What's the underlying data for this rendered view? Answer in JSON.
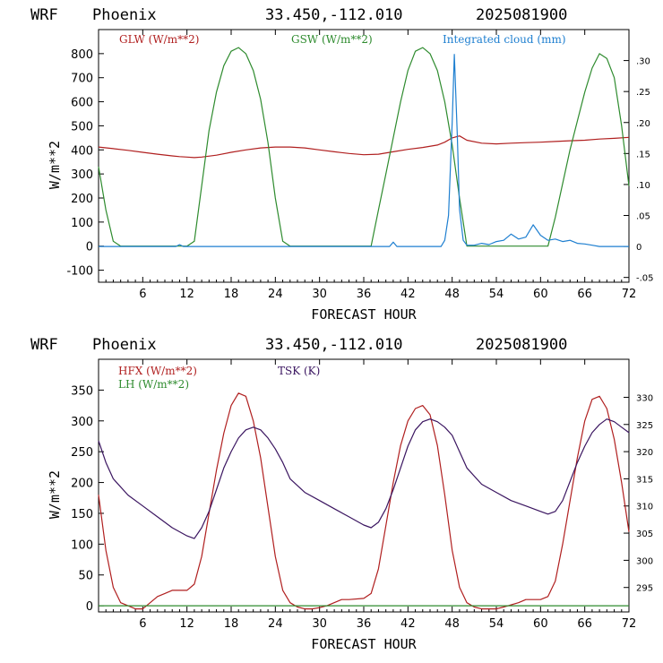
{
  "chart_data": [
    {
      "type": "line",
      "header": {
        "model": "WRF",
        "location": "Phoenix",
        "coords": "33.450,-112.010",
        "init": "2025081900"
      },
      "xlabel": "FORECAST HOUR",
      "ylabel": "W/m**2",
      "xlim": [
        0,
        72
      ],
      "xticks": [
        6,
        12,
        18,
        24,
        30,
        36,
        42,
        48,
        54,
        60,
        66,
        72
      ],
      "ylim": [
        -150,
        900
      ],
      "yticks": [
        -100,
        0,
        100,
        200,
        300,
        400,
        500,
        600,
        700,
        800
      ],
      "y2lim": [
        -0.0577,
        0.35
      ],
      "y2ticks": [
        -0.05,
        0,
        0.05,
        0.1,
        0.15,
        0.2,
        0.25,
        0.3
      ],
      "y2ticklabels": [
        "-.05",
        "0",
        ".05",
        ".10",
        ".15",
        ".20",
        ".25",
        ".30"
      ],
      "series": [
        {
          "name": "GLW (W/m**2)",
          "color": "#b01f1f",
          "axis": "left",
          "x": [
            0,
            2,
            4,
            6,
            8,
            10,
            11,
            12,
            13,
            14,
            16,
            18,
            20,
            22,
            24,
            26,
            28,
            30,
            32,
            34,
            36,
            38,
            40,
            42,
            44,
            46,
            47,
            48,
            49,
            50,
            52,
            54,
            56,
            58,
            60,
            62,
            64,
            66,
            68,
            70,
            72
          ],
          "y": [
            412,
            405,
            398,
            390,
            382,
            375,
            372,
            370,
            368,
            370,
            378,
            390,
            400,
            408,
            412,
            412,
            408,
            400,
            392,
            385,
            380,
            382,
            392,
            402,
            410,
            420,
            432,
            450,
            458,
            440,
            428,
            425,
            428,
            430,
            432,
            435,
            438,
            440,
            445,
            448,
            452
          ]
        },
        {
          "name": "GSW (W/m**2)",
          "color": "#2e8b2e",
          "axis": "left",
          "x": [
            0,
            1,
            2,
            3,
            4,
            12,
            13,
            14,
            15,
            16,
            17,
            18,
            19,
            20,
            21,
            22,
            23,
            24,
            25,
            26,
            37,
            38,
            39,
            40,
            41,
            42,
            43,
            44,
            45,
            46,
            47,
            48,
            49,
            50,
            61,
            62,
            63,
            64,
            65,
            66,
            67,
            68,
            69,
            70,
            71,
            72
          ],
          "y": [
            330,
            150,
            20,
            0,
            0,
            0,
            20,
            250,
            480,
            640,
            750,
            810,
            825,
            800,
            730,
            610,
            430,
            200,
            20,
            0,
            0,
            150,
            300,
            450,
            600,
            730,
            810,
            825,
            800,
            730,
            600,
            420,
            200,
            0,
            0,
            120,
            260,
            400,
            520,
            640,
            740,
            800,
            780,
            700,
            500,
            250
          ]
        },
        {
          "name": "Integrated cloud (mm)",
          "color": "#1e7fd0",
          "axis": "right",
          "x": [
            0,
            10.5,
            11,
            11.5,
            39.5,
            40,
            40.5,
            46.5,
            47,
            47.5,
            48,
            48.3,
            48.7,
            49,
            49.5,
            50,
            51,
            52,
            53,
            54,
            55,
            56,
            57,
            58,
            59,
            60,
            61,
            62,
            63,
            64,
            65,
            66,
            67,
            68,
            72
          ],
          "y": [
            0,
            0,
            0.003,
            0,
            0,
            0.007,
            0,
            0,
            0.01,
            0.05,
            0.2,
            0.31,
            0.18,
            0.06,
            0.01,
            0.002,
            0.002,
            0.005,
            0.003,
            0.008,
            0.01,
            0.02,
            0.012,
            0.015,
            0.035,
            0.018,
            0.01,
            0.012,
            0.008,
            0.01,
            0.005,
            0.004,
            0.002,
            0,
            0
          ]
        }
      ]
    },
    {
      "type": "line",
      "header": {
        "model": "WRF",
        "location": "Phoenix",
        "coords": "33.450,-112.010",
        "init": "2025081900"
      },
      "xlabel": "FORECAST HOUR",
      "ylabel": "W/m**2",
      "xlim": [
        0,
        72
      ],
      "xticks": [
        6,
        12,
        18,
        24,
        30,
        36,
        42,
        48,
        54,
        60,
        66,
        72
      ],
      "ylim": [
        -10,
        400
      ],
      "yticks": [
        0,
        50,
        100,
        150,
        200,
        250,
        300,
        350
      ],
      "y2lim": [
        290.5,
        337.0
      ],
      "y2ticks": [
        295,
        300,
        305,
        310,
        315,
        320,
        325,
        330
      ],
      "y2ticklabels": [
        "295",
        "300",
        "305",
        "310",
        "315",
        "320",
        "325",
        "330"
      ],
      "series": [
        {
          "name": "HFX (W/m**2)",
          "color": "#b01f1f",
          "axis": "left",
          "x": [
            0,
            1,
            2,
            3,
            4,
            5,
            6,
            7,
            8,
            9,
            10,
            12,
            13,
            14,
            15,
            16,
            17,
            18,
            19,
            20,
            21,
            22,
            23,
            24,
            25,
            26,
            27,
            28,
            29,
            30,
            31,
            33,
            34,
            36,
            37,
            38,
            39,
            40,
            41,
            42,
            43,
            44,
            45,
            46,
            47,
            48,
            49,
            50,
            51,
            52,
            53,
            54,
            55,
            57,
            58,
            60,
            61,
            62,
            63,
            64,
            65,
            66,
            67,
            68,
            69,
            70,
            71,
            72
          ],
          "y": [
            180,
            90,
            30,
            5,
            0,
            -5,
            -5,
            5,
            15,
            20,
            25,
            25,
            35,
            80,
            150,
            220,
            280,
            325,
            345,
            340,
            300,
            240,
            160,
            80,
            25,
            5,
            -2,
            -5,
            -5,
            -3,
            0,
            10,
            10,
            12,
            20,
            60,
            130,
            200,
            260,
            300,
            320,
            325,
            310,
            260,
            180,
            90,
            30,
            5,
            -2,
            -5,
            -5,
            -5,
            -2,
            5,
            10,
            10,
            15,
            40,
            100,
            170,
            240,
            300,
            335,
            340,
            320,
            270,
            200,
            120
          ]
        },
        {
          "name": "LH (W/m**2)",
          "color": "#2e8b2e",
          "axis": "left",
          "x": [
            0,
            72
          ],
          "y": [
            0,
            0
          ]
        },
        {
          "name": "TSK (K)",
          "color": "#3a1560",
          "axis": "right",
          "x": [
            0,
            1,
            2,
            4,
            6,
            8,
            10,
            12,
            13,
            14,
            15,
            16,
            17,
            18,
            19,
            20,
            21,
            22,
            23,
            24,
            25,
            26,
            28,
            30,
            32,
            34,
            36,
            37,
            38,
            39,
            40,
            41,
            42,
            43,
            44,
            45,
            46,
            47,
            48,
            49,
            50,
            52,
            54,
            56,
            58,
            60,
            61,
            62,
            63,
            64,
            65,
            66,
            67,
            68,
            69,
            70,
            71,
            72
          ],
          "y": [
            322,
            318,
            315,
            312,
            310,
            308,
            306,
            304.5,
            304,
            306,
            309,
            313,
            317,
            320,
            322.5,
            324,
            324.5,
            324,
            322.5,
            320.5,
            318,
            315,
            312.5,
            311,
            309.5,
            308,
            306.5,
            306,
            307,
            309.5,
            313,
            317,
            321,
            324,
            325.5,
            326,
            325.5,
            324.5,
            323,
            320,
            317,
            314,
            312.5,
            311,
            310,
            309,
            308.5,
            309,
            311,
            314.5,
            318,
            321,
            323.5,
            325,
            326,
            325.5,
            324.5,
            323.5
          ]
        }
      ]
    }
  ]
}
